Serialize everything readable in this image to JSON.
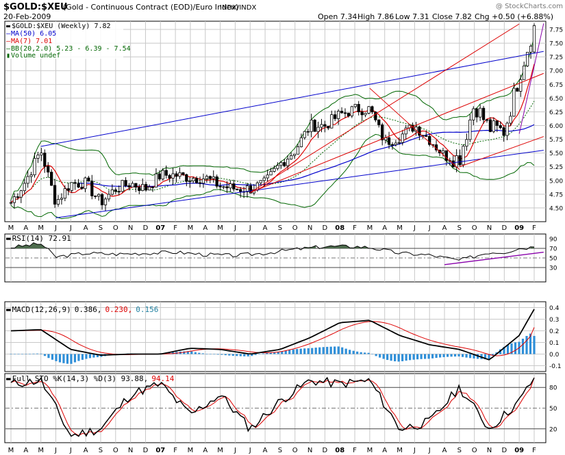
{
  "header": {
    "symbol": "$GOLD:$XEU",
    "description": "(Gold - Continuous Contract (EOD)/Euro Index)",
    "exchange": "INDX/INDX",
    "watermark": "@ StockCharts.com",
    "date": "20-Feb-2009",
    "quote_open": "Open 7.34",
    "quote_high": "High 7.86",
    "quote_low": "Low 7.31",
    "quote_close": "Close 7.82",
    "quote_chg": "Chg +0.50 (+6.88%)"
  },
  "legend": {
    "price": "$GOLD:$XEU (Weekly) 7.82",
    "ma50": "MA(50) 6.05",
    "ma7": "MA(7) 7.01",
    "bb": "BB(20,2.0) 5.23 - 6.39 - 7.54",
    "volume": "Volume undef"
  },
  "panels": {
    "rsi_label": "RSI(14) 72.91",
    "macd_label": "MACD(12,26,9)",
    "macd_v1": "0.386,",
    "macd_v2": "0.230,",
    "macd_v3": "0.156",
    "sto_label": "Full STO %K(14,3) %D(3) 93.88,",
    "sto_v2": "94.14"
  },
  "colors": {
    "price": "#000000",
    "ma50": "#0000cc",
    "ma7": "#dd0000",
    "bb": "#006600",
    "trend_blue": "#0000cc",
    "trend_red": "#dd0000",
    "trend_purple": "#8800aa",
    "hist": "#2f8fd8",
    "rsi_fill": "#4d6b4d",
    "grid": "#c8c8c8",
    "macd_signal_text": "#dd0000",
    "macd_hist_text": "#2080a0"
  },
  "x_axis_labels": [
    "M",
    "A",
    "M",
    "J",
    "J",
    "A",
    "S",
    "O",
    "N",
    "D",
    "07",
    "F",
    "M",
    "A",
    "M",
    "J",
    "J",
    "A",
    "S",
    "O",
    "N",
    "D",
    "08",
    "F",
    "M",
    "A",
    "M",
    "J",
    "J",
    "A",
    "S",
    "O",
    "N",
    "D",
    "09",
    "F"
  ],
  "chart_data": [
    {
      "type": "candlestick",
      "title": "$GOLD:$XEU (Gold - Continuous Contract (EOD)/Euro Index)",
      "period": "Weekly",
      "x_range": [
        "2006-03",
        "2009-02-20"
      ],
      "ylim": [
        4.25,
        7.9
      ],
      "y_ticks": [
        4.5,
        4.75,
        5.0,
        5.25,
        5.5,
        5.75,
        6.0,
        6.25,
        6.5,
        6.75,
        7.0,
        7.25,
        7.5,
        7.75
      ],
      "close_path": {
        "x": [
          "2006-03",
          "2006-04",
          "2006-05",
          "2006-06",
          "2006-07",
          "2006-08",
          "2006-09",
          "2006-10",
          "2006-11",
          "2006-12",
          "2007-01",
          "2007-02",
          "2007-03",
          "2007-04",
          "2007-05",
          "2007-06",
          "2007-07",
          "2007-08",
          "2007-09",
          "2007-10",
          "2007-11",
          "2007-12",
          "2008-01",
          "2008-02",
          "2008-03",
          "2008-04",
          "2008-05",
          "2008-06",
          "2008-07",
          "2008-08",
          "2008-09",
          "2008-10",
          "2008-11",
          "2008-12",
          "2009-01",
          "2009-02"
        ],
        "values": [
          4.6,
          5.0,
          5.55,
          4.6,
          4.95,
          4.95,
          4.6,
          4.85,
          4.95,
          4.85,
          5.1,
          5.1,
          5.05,
          5.05,
          4.9,
          4.85,
          4.85,
          4.95,
          5.3,
          5.55,
          6.0,
          6.0,
          6.2,
          6.3,
          6.3,
          5.7,
          5.8,
          6.0,
          5.75,
          5.45,
          5.4,
          6.4,
          5.95,
          5.9,
          6.9,
          7.82
        ]
      },
      "ma50": {
        "label": "MA(50)",
        "last": 6.05
      },
      "ma7": {
        "label": "MA(7)",
        "last": 7.01
      },
      "bollinger": {
        "label": "BB(20,2.0)",
        "lower": 5.23,
        "middle": 6.39,
        "upper": 7.54
      },
      "last_ohlc": {
        "open": 7.34,
        "high": 7.86,
        "low": 7.31,
        "close": 7.82,
        "change": 0.5,
        "change_pct": 6.88
      }
    },
    {
      "type": "line",
      "title": "RSI(14)",
      "last": 72.91,
      "ylim": [
        0,
        100
      ],
      "y_ticks": [
        30,
        50,
        70,
        90
      ],
      "series": [
        {
          "name": "RSI(14)",
          "x": [
            "2006-03",
            "2006-05",
            "2006-06",
            "2006-08",
            "2006-10",
            "2006-12",
            "2007-02",
            "2007-04",
            "2007-06",
            "2007-08",
            "2007-10",
            "2007-12",
            "2008-02",
            "2008-03",
            "2008-05",
            "2008-07",
            "2008-09",
            "2008-11",
            "2008-12",
            "2009-01",
            "2009-02"
          ],
          "values": [
            72,
            80,
            52,
            60,
            58,
            60,
            62,
            57,
            55,
            60,
            68,
            74,
            74,
            72,
            60,
            56,
            45,
            62,
            62,
            70,
            72.91
          ]
        }
      ]
    },
    {
      "type": "line",
      "title": "MACD(12,26,9)",
      "ylim": [
        -0.15,
        0.45
      ],
      "y_ticks": [
        -0.1,
        0.0,
        0.1,
        0.2,
        0.3,
        0.4
      ],
      "series": [
        {
          "name": "MACD",
          "last": 0.386,
          "x": [
            "2006-03",
            "2006-05",
            "2006-07",
            "2006-09",
            "2006-11",
            "2007-01",
            "2007-03",
            "2007-05",
            "2007-07",
            "2007-09",
            "2007-11",
            "2008-01",
            "2008-03",
            "2008-05",
            "2008-07",
            "2008-09",
            "2008-11",
            "2009-01",
            "2009-02"
          ],
          "values": [
            0.2,
            0.21,
            0.04,
            -0.01,
            0.0,
            0.0,
            0.05,
            0.04,
            0.0,
            0.04,
            0.14,
            0.27,
            0.29,
            0.16,
            0.08,
            0.04,
            -0.05,
            0.16,
            0.386
          ]
        },
        {
          "name": "Signal",
          "last": 0.23
        },
        {
          "name": "Histogram",
          "last": 0.156
        }
      ]
    },
    {
      "type": "line",
      "title": "Full STO %K(14,3) %D(3)",
      "ylim": [
        0,
        100
      ],
      "y_ticks": [
        20,
        50,
        80
      ],
      "series": [
        {
          "name": "%K",
          "last": 93.88,
          "x": [
            "2006-03",
            "2006-05",
            "2006-07",
            "2006-09",
            "2006-11",
            "2007-01",
            "2007-03",
            "2007-05",
            "2007-07",
            "2007-09",
            "2007-11",
            "2008-01",
            "2008-03",
            "2008-05",
            "2008-07",
            "2008-09",
            "2008-11",
            "2009-01",
            "2009-02"
          ],
          "values": [
            85,
            90,
            10,
            20,
            70,
            85,
            40,
            70,
            20,
            60,
            90,
            85,
            90,
            20,
            30,
            80,
            20,
            60,
            93.88
          ]
        },
        {
          "name": "%D",
          "last": 94.14
        }
      ]
    }
  ]
}
